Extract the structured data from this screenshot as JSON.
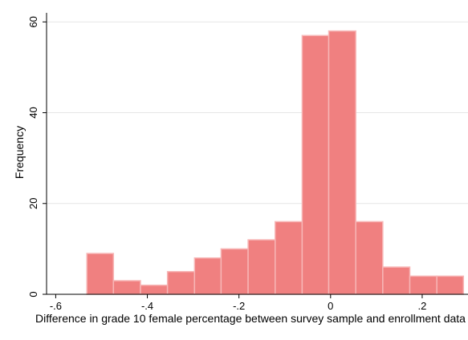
{
  "chart_data": {
    "type": "bar",
    "subtype": "histogram",
    "xlabel": "Difference in grade 10 female percentage between survey sample and enrollment data",
    "ylabel": "Frequency",
    "xlim": [
      -0.62,
      0.3
    ],
    "ylim": [
      0,
      62
    ],
    "x_ticks": [
      {
        "value": -0.6,
        "label": "-.6"
      },
      {
        "value": -0.4,
        "label": "-.4"
      },
      {
        "value": -0.2,
        "label": "-.2"
      },
      {
        "value": 0,
        "label": "0"
      },
      {
        "value": 0.2,
        "label": ".2"
      }
    ],
    "y_ticks": [
      {
        "value": 0,
        "label": "0"
      },
      {
        "value": 20,
        "label": "20"
      },
      {
        "value": 40,
        "label": "40"
      },
      {
        "value": 60,
        "label": "60"
      }
    ],
    "grid": true,
    "bar_color": "#f08080",
    "bar_edge_color": "#f7b6b6",
    "bins": [
      {
        "x0": -0.532,
        "x1": -0.474,
        "value": 9
      },
      {
        "x0": -0.474,
        "x1": -0.415,
        "value": 3
      },
      {
        "x0": -0.415,
        "x1": -0.356,
        "value": 2
      },
      {
        "x0": -0.356,
        "x1": -0.297,
        "value": 5
      },
      {
        "x0": -0.297,
        "x1": -0.239,
        "value": 8
      },
      {
        "x0": -0.239,
        "x1": -0.18,
        "value": 10
      },
      {
        "x0": -0.18,
        "x1": -0.121,
        "value": 12
      },
      {
        "x0": -0.121,
        "x1": -0.062,
        "value": 16
      },
      {
        "x0": -0.062,
        "x1": -0.004,
        "value": 57
      },
      {
        "x0": -0.004,
        "x1": 0.055,
        "value": 58
      },
      {
        "x0": 0.055,
        "x1": 0.114,
        "value": 16
      },
      {
        "x0": 0.114,
        "x1": 0.173,
        "value": 6
      },
      {
        "x0": 0.173,
        "x1": 0.232,
        "value": 4
      },
      {
        "x0": 0.232,
        "x1": 0.29,
        "value": 4
      }
    ]
  }
}
